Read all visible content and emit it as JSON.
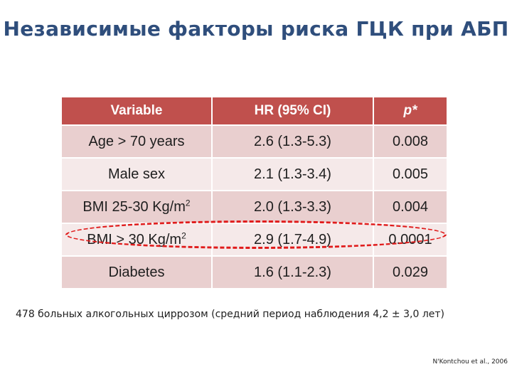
{
  "title": "Независимые факторы риска ГЦК при АБП",
  "table": {
    "headers": [
      "Variable",
      "HR (95% CI)",
      "p*"
    ],
    "rows": [
      {
        "variable": "Age > 70 years",
        "hr": "2.6 (1.3-5.3)",
        "p": "0.008"
      },
      {
        "variable": "Male sex",
        "hr": "2.1 (1.3-3.4)",
        "p": "0.005"
      },
      {
        "variable": "BMI 25-30 Kg/m",
        "variable_sup": "2",
        "hr": "2.0 (1.3-3.3)",
        "p": "0.004"
      },
      {
        "variable": "BMI > 30 Kg/m",
        "variable_sup": "2",
        "hr": "2.9 (1.7-4.9)",
        "p": "0.0001",
        "highlighted": true
      },
      {
        "variable": "Diabetes",
        "hr": "1.6 (1.1-2.3)",
        "p": "0.029"
      }
    ]
  },
  "colors": {
    "title": "#2f4e7c",
    "header_bg": "#c0504d",
    "row_odd": "#e9cfcf",
    "row_even": "#f5e9e9",
    "highlight_ellipse": "#e01b1b"
  },
  "note": "478 больных алкогольных циррозом (средний период наблюдения 4,2 ± 3,0 лет)",
  "citation": "N'Kontchou et al., 2006"
}
